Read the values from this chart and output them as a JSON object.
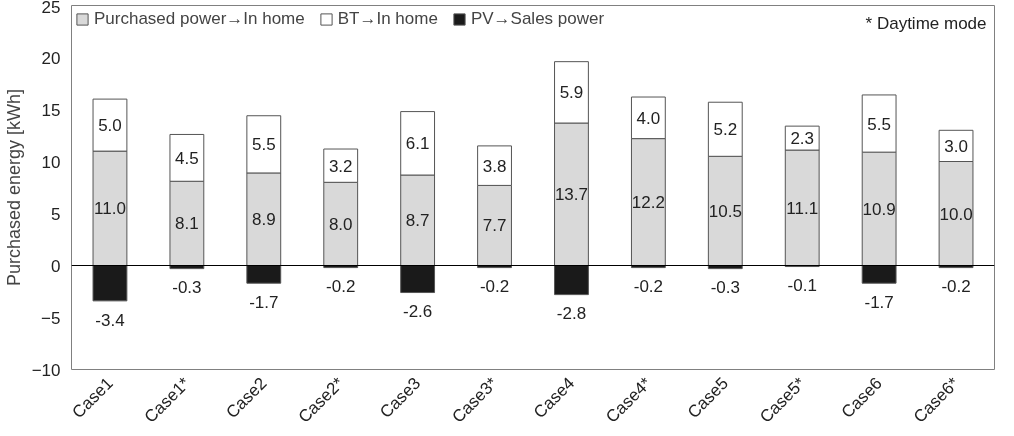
{
  "chart_data": {
    "type": "bar",
    "stacked": true,
    "ylabel": "Purchased energy [kWh]",
    "categories": [
      "Case1",
      "Case1*",
      "Case2",
      "Case2*",
      "Case3",
      "Case3*",
      "Case4",
      "Case4*",
      "Case5",
      "Case5*",
      "Case6",
      "Case6*"
    ],
    "series": [
      {
        "name": "Purchased power→In home",
        "color": "#d9d9d9",
        "values": [
          11.0,
          8.1,
          8.9,
          8.0,
          8.7,
          7.7,
          13.7,
          12.2,
          10.5,
          11.1,
          10.9,
          10.0
        ],
        "value_labels": [
          "11.0",
          "8.1",
          "8.9",
          "8.0",
          "8.7",
          "7.7",
          "13.7",
          "12.2",
          "10.5",
          "11.1",
          "10.9",
          "10.0"
        ]
      },
      {
        "name": "BT→In home",
        "color": "#ffffff",
        "values": [
          5.0,
          4.5,
          5.5,
          3.2,
          6.1,
          3.8,
          5.9,
          4.0,
          5.2,
          2.3,
          5.5,
          3.0
        ],
        "value_labels": [
          "5.0",
          "4.5",
          "5.5",
          "3.2",
          "6.1",
          "3.8",
          "5.9",
          "4.0",
          "5.2",
          "2.3",
          "5.5",
          "3.0"
        ]
      },
      {
        "name": "PV→Sales power",
        "color": "#1a1a1a",
        "values": [
          -3.4,
          -0.3,
          -1.7,
          -0.2,
          -2.6,
          -0.2,
          -2.8,
          -0.2,
          -0.3,
          -0.1,
          -1.7,
          -0.2
        ],
        "value_labels": [
          "-3.4",
          "-0.3",
          "-1.7",
          "-0.2",
          "-2.6",
          "-0.2",
          "-2.8",
          "-0.2",
          "-0.3",
          "-0.1",
          "-1.7",
          "-0.2"
        ]
      }
    ],
    "ylim": [
      -10,
      25
    ],
    "yticks": [
      -10,
      -5,
      0,
      5,
      10,
      15,
      20,
      25
    ],
    "ref_lines": [
      {
        "axis": "y",
        "value": 0,
        "label": null
      }
    ],
    "annotations": [
      "* Daytime mode"
    ],
    "grid": false,
    "legend": "top"
  }
}
